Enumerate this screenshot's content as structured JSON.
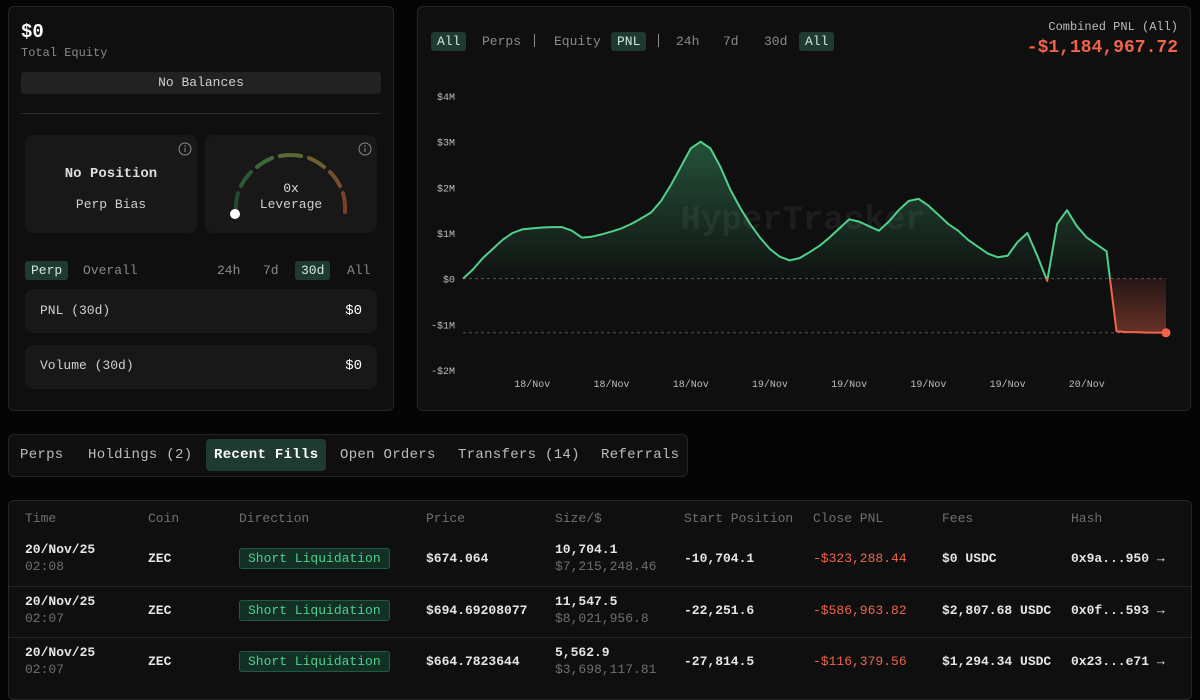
{
  "equity": {
    "value": "$0",
    "label": "Total Equity",
    "no_balances": "No Balances"
  },
  "bias_card": {
    "title": "No Position",
    "subtitle": "Perp Bias"
  },
  "leverage_card": {
    "value": "0x",
    "label": "Leverage"
  },
  "stats_tabs": [
    "Perp",
    "Overall"
  ],
  "stats_ranges": [
    "24h",
    "7d",
    "30d",
    "All"
  ],
  "stats": [
    {
      "label": "PNL (30d)",
      "value": "$0"
    },
    {
      "label": "Volume (30d)",
      "value": "$0"
    }
  ],
  "chart_filters": [
    "All",
    "Perps",
    "Equity",
    "PNL",
    "24h",
    "7d",
    "30d",
    "All"
  ],
  "combined_pnl": {
    "label": "Combined PNL (All)",
    "value": "-$1,184,967.72"
  },
  "chart_data": {
    "type": "area",
    "watermark": "HyperTracker",
    "categories": [
      null,
      null,
      null,
      null,
      null,
      null,
      null,
      "18/Nov",
      null,
      null,
      null,
      null,
      null,
      null,
      null,
      "18/Nov",
      null,
      null,
      null,
      null,
      null,
      null,
      null,
      "18/Nov",
      null,
      null,
      null,
      null,
      null,
      null,
      null,
      "19/Nov",
      null,
      null,
      null,
      null,
      null,
      null,
      null,
      "19/Nov",
      null,
      null,
      null,
      null,
      null,
      null,
      null,
      "19/Nov",
      null,
      null,
      null,
      null,
      null,
      null,
      null,
      "19/Nov",
      null,
      null,
      null,
      null,
      null,
      null,
      null,
      "20/Nov",
      null,
      null,
      null,
      null,
      null,
      null,
      null,
      null
    ],
    "series": [
      {
        "color": "#4fd18b",
        "negative_color": "#f0654a",
        "values": [
          0,
          200000,
          450000,
          650000,
          850000,
          1000000,
          1080000,
          1100000,
          1120000,
          1130000,
          1130000,
          1050000,
          900000,
          920000,
          970000,
          1030000,
          1100000,
          1200000,
          1320000,
          1450000,
          1700000,
          2050000,
          2450000,
          2850000,
          3000000,
          2850000,
          2450000,
          1950000,
          1550000,
          1200000,
          900000,
          650000,
          480000,
          400000,
          450000,
          580000,
          720000,
          900000,
          1100000,
          1300000,
          1250000,
          1150000,
          1050000,
          1250000,
          1500000,
          1700000,
          1750000,
          1600000,
          1400000,
          1200000,
          1050000,
          850000,
          700000,
          550000,
          470000,
          500000,
          800000,
          1000000,
          500000,
          -50000,
          1200000,
          1500000,
          1150000,
          900000,
          750000,
          600000,
          -1150000,
          -1170000,
          -1170000,
          -1180000,
          -1180000,
          -1184967.72
        ]
      }
    ],
    "ylim": [
      -2000000,
      4000000
    ],
    "yticks": [
      {
        "value": -2000000,
        "label": "-$2M"
      },
      {
        "value": -1000000,
        "label": "-$1M"
      },
      {
        "value": 0,
        "label": "$0"
      },
      {
        "value": 1000000,
        "label": "$1M"
      },
      {
        "value": 2000000,
        "label": "$2M"
      },
      {
        "value": 3000000,
        "label": "$3M"
      },
      {
        "value": 4000000,
        "label": "$4M"
      }
    ]
  },
  "tabs": [
    "Perps",
    "Holdings (2)",
    "Recent Fills",
    "Open Orders",
    "Transfers (14)",
    "Referrals"
  ],
  "table": {
    "columns": [
      "Time",
      "Coin",
      "Direction",
      "Price",
      "Size/$",
      "Start Position",
      "Close PNL",
      "Fees",
      "Hash"
    ],
    "rows": [
      {
        "date": "20/Nov/25",
        "clock": "02:08",
        "coin": "ZEC",
        "direction": "Short Liquidation",
        "price": "$674.064",
        "size": "10,704.1",
        "size_usd": "$7,215,248.46",
        "start_position": "-10,704.1",
        "close_pnl": "-$323,288.44",
        "fees": "$0 USDC",
        "hash": "0x9a...950 →"
      },
      {
        "date": "20/Nov/25",
        "clock": "02:07",
        "coin": "ZEC",
        "direction": "Short Liquidation",
        "price": "$694.69208077",
        "size": "11,547.5",
        "size_usd": "$8,021,956.8",
        "start_position": "-22,251.6",
        "close_pnl": "-$586,963.82",
        "fees": "$2,807.68 USDC",
        "hash": "0x0f...593 →"
      },
      {
        "date": "20/Nov/25",
        "clock": "02:07",
        "coin": "ZEC",
        "direction": "Short Liquidation",
        "price": "$664.7823644",
        "size": "5,562.9",
        "size_usd": "$3,698,117.81",
        "start_position": "-27,814.5",
        "close_pnl": "-$116,379.56",
        "fees": "$1,294.34 USDC",
        "hash": "0x23...e71 →"
      }
    ]
  }
}
